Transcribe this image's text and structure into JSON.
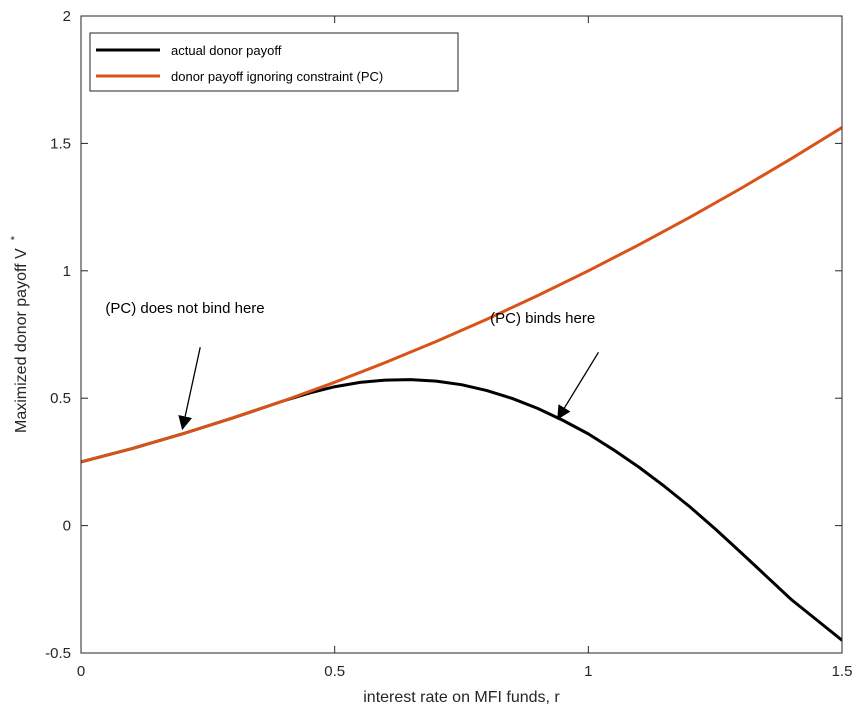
{
  "chart_data": {
    "type": "line",
    "title": "",
    "xlabel": "interest rate on MFI funds, r",
    "ylabel": "Maximized donor payoff V",
    "ylabel_superscript": "*",
    "xlim": [
      0,
      1.5
    ],
    "ylim": [
      -0.5,
      2
    ],
    "xticks": [
      0,
      0.5,
      1,
      1.5
    ],
    "xtick_labels": [
      "0",
      "0.5",
      "1",
      "1.5"
    ],
    "yticks": [
      -0.5,
      0,
      0.5,
      1,
      1.5,
      2
    ],
    "ytick_labels": [
      "-0.5",
      "0",
      "0.5",
      "1",
      "1.5",
      "2"
    ],
    "grid": false,
    "legend_position": "top-left",
    "series": [
      {
        "name": "actual donor payoff",
        "color": "#000000",
        "x": [
          0,
          0.1,
          0.2,
          0.3,
          0.4,
          0.45,
          0.5,
          0.55,
          0.6,
          0.65,
          0.7,
          0.75,
          0.8,
          0.85,
          0.9,
          0.95,
          1.0,
          1.05,
          1.1,
          1.15,
          1.2,
          1.25,
          1.3,
          1.35,
          1.4,
          1.45,
          1.5
        ],
        "y": [
          0.25,
          0.302,
          0.36,
          0.423,
          0.49,
          0.52,
          0.545,
          0.562,
          0.571,
          0.573,
          0.567,
          0.553,
          0.53,
          0.499,
          0.46,
          0.413,
          0.36,
          0.297,
          0.229,
          0.154,
          0.074,
          -0.013,
          -0.104,
          -0.197,
          -0.29,
          -0.37,
          -0.45
        ]
      },
      {
        "name": "donor payoff ignoring constraint (PC)",
        "color": "#D95319",
        "x": [
          0,
          0.1,
          0.2,
          0.3,
          0.4,
          0.5,
          0.6,
          0.7,
          0.8,
          0.9,
          1.0,
          1.1,
          1.2,
          1.3,
          1.4,
          1.5
        ],
        "y": [
          0.25,
          0.302,
          0.36,
          0.423,
          0.49,
          0.5625,
          0.64,
          0.7225,
          0.81,
          0.9025,
          1.0,
          1.1025,
          1.21,
          1.3225,
          1.44,
          1.5625
        ]
      }
    ],
    "annotations": [
      {
        "text": "(PC) does not bind here",
        "text_x": 0.205,
        "text_y": 0.835,
        "arrow_from": [
          0.235,
          0.7
        ],
        "arrow_to": [
          0.2,
          0.38
        ]
      },
      {
        "text": "(PC) binds here",
        "text_x": 0.91,
        "text_y": 0.795,
        "arrow_from": [
          1.02,
          0.68
        ],
        "arrow_to": [
          0.94,
          0.42
        ]
      }
    ]
  }
}
